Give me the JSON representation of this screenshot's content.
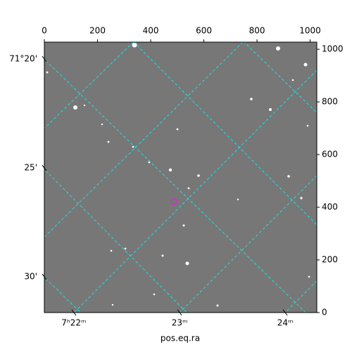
{
  "chart_data": {
    "type": "image",
    "xlabel": "pos.eq.ra",
    "xlim": [
      0,
      1025
    ],
    "xticks": [
      0,
      200,
      400,
      600,
      800,
      1000
    ],
    "ylim": [
      0,
      1027
    ],
    "yticks": [
      0,
      200,
      400,
      600,
      800,
      1000
    ],
    "ra_ticks": [
      {
        "value": 111,
        "label": "7ʰ22ᵐ"
      },
      {
        "value": 509,
        "label": "23ᵐ"
      },
      {
        "value": 906,
        "label": "24ᵐ"
      }
    ],
    "dec_ticks": [
      {
        "value": 963,
        "label": "71°20'"
      },
      {
        "value": 549,
        "label": "25'"
      },
      {
        "value": 136,
        "label": "30'"
      }
    ],
    "grid_color": "#22e0e0",
    "marker_color": "#cc33cc"
  }
}
